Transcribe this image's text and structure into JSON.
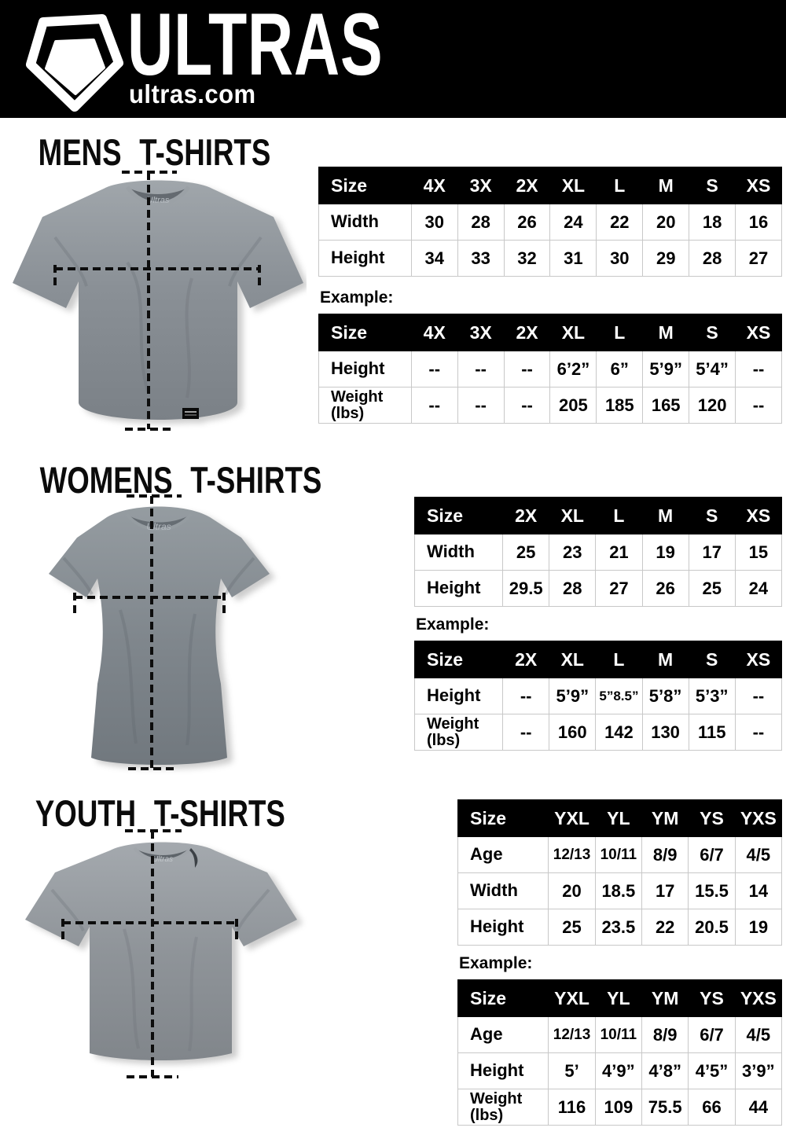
{
  "header": {
    "brand": "ULTRAS",
    "site": "ultras.com",
    "logo_icon": "pentagon-shield-icon",
    "shirt_label": "Ultras"
  },
  "colors": {
    "header_bg": "#000000",
    "table_header_bg": "#000000",
    "table_header_text": "#ffffff",
    "table_border": "#c8c8c8",
    "shirt_gray": "#8a9096",
    "measure_line": "#0d0d0d"
  },
  "sections": {
    "mens": {
      "title": "MENS T-SHIRTS",
      "example_label": "Example:",
      "size_table": {
        "header": [
          "Size",
          "4X",
          "3X",
          "2X",
          "XL",
          "L",
          "M",
          "S",
          "XS"
        ],
        "rows": [
          {
            "label": [
              "Width"
            ],
            "values": [
              "30",
              "28",
              "26",
              "24",
              "22",
              "20",
              "18",
              "16"
            ]
          },
          {
            "label": [
              "Height"
            ],
            "values": [
              "34",
              "33",
              "32",
              "31",
              "30",
              "29",
              "28",
              "27"
            ]
          }
        ]
      },
      "example_table": {
        "header": [
          "Size",
          "4X",
          "3X",
          "2X",
          "XL",
          "L",
          "M",
          "S",
          "XS"
        ],
        "rows": [
          {
            "label": [
              "Height"
            ],
            "values": [
              "--",
              "--",
              "--",
              "6’2”",
              "6”",
              "5’9”",
              "5’4”",
              "--"
            ]
          },
          {
            "label": [
              "Weight",
              "(lbs)"
            ],
            "values": [
              "--",
              "--",
              "--",
              "205",
              "185",
              "165",
              "120",
              "--"
            ]
          }
        ]
      }
    },
    "womens": {
      "title": "WOMENS T-SHIRTS",
      "example_label": "Example:",
      "size_table": {
        "header": [
          "Size",
          "2X",
          "XL",
          "L",
          "M",
          "S",
          "XS"
        ],
        "rows": [
          {
            "label": [
              "Width"
            ],
            "values": [
              "25",
              "23",
              "21",
              "19",
              "17",
              "15"
            ]
          },
          {
            "label": [
              "Height"
            ],
            "values": [
              "29.5",
              "28",
              "27",
              "26",
              "25",
              "24"
            ]
          }
        ]
      },
      "example_table": {
        "header": [
          "Size",
          "2X",
          "XL",
          "L",
          "M",
          "S",
          "XS"
        ],
        "rows": [
          {
            "label": [
              "Height"
            ],
            "values": [
              "--",
              "5’9”",
              "5”8.5”",
              "5’8”",
              "5’3”",
              "--"
            ]
          },
          {
            "label": [
              "Weight",
              "(lbs)"
            ],
            "values": [
              "--",
              "160",
              "142",
              "130",
              "115",
              "--"
            ]
          }
        ]
      }
    },
    "youth": {
      "title": "YOUTH T-SHIRTS",
      "example_label": "Example:",
      "size_table": {
        "header": [
          "Size",
          "YXL",
          "YL",
          "YM",
          "YS",
          "YXS"
        ],
        "rows": [
          {
            "label": [
              "Age"
            ],
            "values": [
              "12/13",
              "10/11",
              "8/9",
              "6/7",
              "4/5"
            ]
          },
          {
            "label": [
              "Width"
            ],
            "values": [
              "20",
              "18.5",
              "17",
              "15.5",
              "14"
            ]
          },
          {
            "label": [
              "Height"
            ],
            "values": [
              "25",
              "23.5",
              "22",
              "20.5",
              "19"
            ]
          }
        ]
      },
      "example_table": {
        "header": [
          "Size",
          "YXL",
          "YL",
          "YM",
          "YS",
          "YXS"
        ],
        "rows": [
          {
            "label": [
              "Age"
            ],
            "values": [
              "12/13",
              "10/11",
              "8/9",
              "6/7",
              "4/5"
            ]
          },
          {
            "label": [
              "Height"
            ],
            "values": [
              "5’",
              "4’9”",
              "4’8”",
              "4’5”",
              "3’9”"
            ]
          },
          {
            "label": [
              "Weight",
              "(lbs)"
            ],
            "values": [
              "116",
              "109",
              "75.5",
              "66",
              "44"
            ]
          }
        ]
      }
    }
  }
}
